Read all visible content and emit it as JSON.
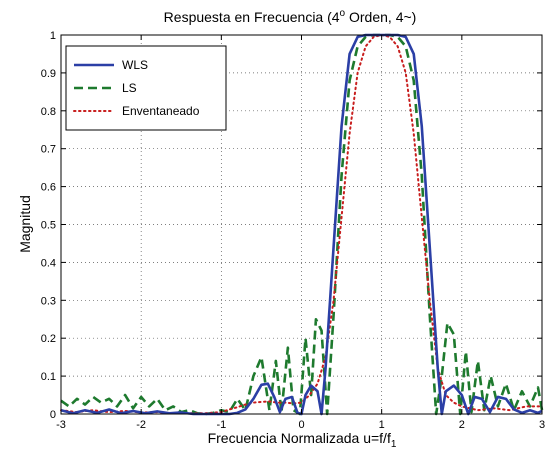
{
  "chart_data": {
    "type": "line",
    "title": "Respuesta en Frecuencia (4",
    "title_sup": "o",
    "title_rest": " Orden, 4~)",
    "xlabel": "Frecuencia Normalizada u=f/f",
    "xlabel_sub": "1",
    "ylabel": "Magnitud",
    "xlim": [
      -3,
      3
    ],
    "ylim": [
      0,
      1
    ],
    "xticks": [
      "-3",
      "-2",
      "-1",
      "0",
      "1",
      "2",
      "3"
    ],
    "yticks": [
      "0",
      "0.1",
      "0.2",
      "0.3",
      "0.4",
      "0.5",
      "0.6",
      "0.7",
      "0.8",
      "0.9",
      "1"
    ],
    "grid": true,
    "legend_position": "top-left",
    "series": [
      {
        "name": "WLS",
        "color": "#2b3fa6",
        "style": "solid",
        "x": [
          -3,
          -2.85,
          -2.7,
          -2.55,
          -2.4,
          -2.25,
          -2.1,
          -1.95,
          -1.8,
          -1.65,
          -1.5,
          -1.35,
          -1.2,
          -1.05,
          -0.9,
          -0.8,
          -0.7,
          -0.6,
          -0.5,
          -0.42,
          -0.34,
          -0.27,
          -0.2,
          -0.12,
          -0.05,
          0.0,
          0.05,
          0.12,
          0.2,
          0.25,
          0.3,
          0.4,
          0.5,
          0.6,
          0.7,
          0.8,
          0.85,
          0.9,
          1.0,
          1.1,
          1.15,
          1.2,
          1.3,
          1.4,
          1.5,
          1.6,
          1.7,
          1.75,
          1.8,
          1.9,
          2.0,
          2.08,
          2.16,
          2.25,
          2.35,
          2.45,
          2.55,
          2.65,
          2.75,
          2.85,
          2.95,
          3.0
        ],
        "y": [
          0.01,
          0.002,
          0.01,
          0.003,
          0.012,
          0.002,
          0.008,
          0.002,
          0.007,
          0.002,
          0.004,
          0.0,
          0.0,
          0.0,
          0.0,
          0.003,
          0.012,
          0.04,
          0.077,
          0.08,
          0.045,
          0.005,
          0.04,
          0.045,
          0.003,
          0.0,
          0.05,
          0.075,
          0.06,
          0.0,
          0.12,
          0.44,
          0.76,
          0.95,
          0.995,
          1.0,
          1.0,
          1.0,
          1.0,
          1.0,
          1.0,
          1.0,
          0.995,
          0.95,
          0.76,
          0.44,
          0.12,
          0.0,
          0.06,
          0.075,
          0.05,
          0.0,
          0.045,
          0.04,
          0.005,
          0.045,
          0.04,
          0.012,
          0.003,
          0.01,
          0.003,
          0.008
        ]
      },
      {
        "name": "LS",
        "color": "#1e7a2e",
        "style": "dashed",
        "x": [
          -3,
          -2.9,
          -2.8,
          -2.7,
          -2.6,
          -2.5,
          -2.4,
          -2.3,
          -2.2,
          -2.1,
          -2.0,
          -1.9,
          -1.8,
          -1.7,
          -1.6,
          -1.5,
          -1.4,
          -1.3,
          -1.2,
          -1.1,
          -1.0,
          -0.9,
          -0.8,
          -0.7,
          -0.6,
          -0.5,
          -0.4,
          -0.32,
          -0.25,
          -0.17,
          -0.1,
          -0.02,
          0.05,
          0.12,
          0.18,
          0.25,
          0.32,
          0.4,
          0.5,
          0.6,
          0.7,
          0.8,
          0.9,
          1.0,
          1.1,
          1.2,
          1.3,
          1.4,
          1.5,
          1.6,
          1.68,
          1.75,
          1.82,
          1.9,
          1.98,
          2.05,
          2.12,
          2.2,
          2.28,
          2.36,
          2.45,
          2.55,
          2.65,
          2.75,
          2.85,
          2.95,
          3.0
        ],
        "y": [
          0.035,
          0.02,
          0.04,
          0.025,
          0.045,
          0.03,
          0.04,
          0.02,
          0.05,
          0.015,
          0.045,
          0.02,
          0.04,
          0.01,
          0.02,
          0.005,
          0.01,
          0.002,
          0.0,
          0.003,
          0.01,
          0.005,
          0.04,
          0.01,
          0.1,
          0.15,
          0.01,
          0.14,
          0.005,
          0.175,
          0.01,
          0.0,
          0.2,
          0.05,
          0.25,
          0.22,
          0.0,
          0.26,
          0.63,
          0.88,
          0.97,
          0.995,
          1.0,
          1.0,
          1.0,
          0.995,
          0.97,
          0.88,
          0.63,
          0.26,
          0.0,
          0.1,
          0.24,
          0.21,
          0.0,
          0.165,
          0.005,
          0.14,
          0.01,
          0.1,
          0.02,
          0.08,
          0.01,
          0.06,
          0.02,
          0.07,
          0.01
        ]
      },
      {
        "name": "Enventaneado",
        "color": "#c81e1e",
        "style": "dotted",
        "x": [
          -3,
          -2.8,
          -2.6,
          -2.4,
          -2.2,
          -2.0,
          -1.8,
          -1.6,
          -1.4,
          -1.2,
          -1.0,
          -0.9,
          -0.8,
          -0.7,
          -0.6,
          -0.5,
          -0.4,
          -0.3,
          -0.2,
          -0.1,
          0.0,
          0.1,
          0.2,
          0.3,
          0.4,
          0.5,
          0.6,
          0.7,
          0.8,
          0.9,
          1.0,
          1.1,
          1.2,
          1.3,
          1.4,
          1.5,
          1.6,
          1.7,
          1.8,
          1.9,
          2.0,
          2.2,
          2.4,
          2.6,
          2.8,
          3.0
        ],
        "y": [
          0.01,
          0.005,
          0.01,
          0.005,
          0.008,
          0.004,
          0.005,
          0.002,
          0.002,
          0.002,
          0.005,
          0.012,
          0.018,
          0.025,
          0.03,
          0.032,
          0.033,
          0.03,
          0.03,
          0.028,
          0.03,
          0.05,
          0.08,
          0.15,
          0.3,
          0.52,
          0.74,
          0.9,
          0.97,
          0.995,
          1.0,
          0.995,
          0.97,
          0.9,
          0.74,
          0.52,
          0.3,
          0.12,
          0.05,
          0.03,
          0.02,
          0.01,
          0.015,
          0.01,
          0.02,
          0.02
        ]
      }
    ]
  }
}
